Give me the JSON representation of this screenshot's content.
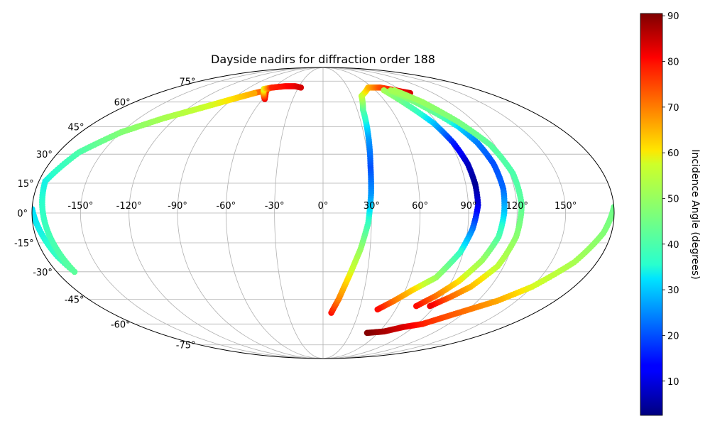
{
  "chart_data": {
    "type": "scatter",
    "projection": "mollweide",
    "title": "Dayside nadirs for diffraction order 188",
    "grid": true,
    "lon_ticks": [
      -150,
      -120,
      -90,
      -60,
      -30,
      0,
      30,
      60,
      90,
      120,
      150
    ],
    "lon_tick_labels": [
      "-150°",
      "-120°",
      "-90°",
      "-60°",
      "-30°",
      "0°",
      "30°",
      "60°",
      "90°",
      "120°",
      "150°"
    ],
    "lat_ticks": [
      75,
      60,
      45,
      30,
      15,
      0,
      -15,
      -30,
      -45,
      -60,
      -75
    ],
    "lat_tick_labels": [
      "75°",
      "60°",
      "45°",
      "30°",
      "15°",
      "0°",
      "-15°",
      "-30°",
      "-45°",
      "-60°",
      "-75°"
    ],
    "colorbar": {
      "label": "Incidence Angle (degrees)",
      "colormap": "jet",
      "range": [
        2.5,
        90.5
      ],
      "ticks": [
        10,
        20,
        30,
        40,
        50,
        60,
        70,
        80,
        90
      ],
      "tick_labels": [
        "10",
        "20",
        "30",
        "40",
        "50",
        "60",
        "70",
        "80",
        "90"
      ],
      "placement": "right"
    },
    "series": [
      {
        "points": [
          [
            -180,
            2,
            47
          ],
          [
            -176,
            -10,
            38
          ],
          [
            -172,
            -22,
            41
          ],
          [
            -168,
            -30,
            50
          ],
          [
            -176,
            16,
            43
          ],
          [
            -166,
            31,
            44
          ],
          [
            -150,
            42,
            48
          ],
          [
            -130,
            50,
            54
          ],
          [
            -110,
            56,
            60
          ],
          [
            -90,
            62,
            64
          ],
          [
            -75,
            66,
            70
          ],
          [
            -65,
            68,
            73
          ],
          [
            -60,
            64,
            78
          ],
          [
            -58,
            62,
            82
          ],
          [
            -70,
            69,
            58
          ],
          [
            -62,
            70,
            78
          ],
          [
            -48,
            71,
            80
          ],
          [
            -35,
            71,
            82
          ],
          [
            -27,
            70,
            84
          ]
        ]
      },
      {
        "points": [
          [
            -180,
            2,
            32
          ],
          [
            -176,
            -10,
            34
          ],
          [
            -172,
            -22,
            37
          ],
          [
            -168,
            -30,
            42
          ],
          [
            -176,
            16,
            34
          ],
          [
            -166,
            31,
            40
          ],
          [
            -150,
            42,
            47
          ],
          [
            -130,
            50,
            52
          ],
          [
            -110,
            56,
            56
          ],
          [
            -90,
            62,
            61
          ],
          [
            -75,
            66,
            66
          ]
        ]
      },
      {
        "points": [
          [
            7,
            -53,
            80
          ],
          [
            12,
            -45,
            70
          ],
          [
            18,
            -32,
            60
          ],
          [
            24,
            -18,
            50
          ],
          [
            28,
            -5,
            38
          ],
          [
            30,
            10,
            26
          ],
          [
            31,
            24,
            20
          ],
          [
            33,
            40,
            27
          ],
          [
            35,
            55,
            40
          ],
          [
            40,
            64,
            55
          ],
          [
            55,
            70,
            64
          ],
          [
            70,
            70,
            74
          ],
          [
            83,
            68,
            80
          ],
          [
            95,
            66,
            84
          ]
        ]
      },
      {
        "points": [
          [
            70,
            68,
            52
          ],
          [
            78,
            58,
            42
          ],
          [
            87,
            47,
            30
          ],
          [
            92,
            36,
            16
          ],
          [
            95,
            25,
            8
          ],
          [
            96,
            14,
            4
          ],
          [
            96,
            4,
            10
          ],
          [
            93,
            -8,
            23
          ],
          [
            88,
            -20,
            36
          ],
          [
            78,
            -33,
            50
          ],
          [
            65,
            -40,
            62
          ],
          [
            55,
            -46,
            70
          ],
          [
            45,
            -51,
            80
          ]
        ]
      },
      {
        "points": [
          [
            78,
            68,
            52
          ],
          [
            88,
            60,
            46
          ],
          [
            97,
            52,
            42
          ],
          [
            104,
            45,
            32
          ],
          [
            109,
            36,
            24
          ],
          [
            112,
            25,
            20
          ],
          [
            113,
            12,
            22
          ],
          [
            112,
            0,
            30
          ],
          [
            110,
            -12,
            40
          ],
          [
            104,
            -24,
            50
          ],
          [
            95,
            -35,
            60
          ],
          [
            85,
            -43,
            70
          ],
          [
            75,
            -49,
            80
          ]
        ]
      },
      {
        "points": [
          [
            82,
            68,
            52
          ],
          [
            95,
            60,
            50
          ],
          [
            107,
            48,
            46
          ],
          [
            117,
            35,
            42
          ],
          [
            122,
            20,
            40
          ],
          [
            123,
            4,
            42
          ],
          [
            121,
            -12,
            48
          ],
          [
            116,
            -27,
            55
          ],
          [
            106,
            -38,
            64
          ],
          [
            96,
            -44,
            72
          ],
          [
            86,
            -49,
            82
          ]
        ]
      },
      {
        "points": [
          [
            180,
            3,
            44
          ],
          [
            175,
            -10,
            47
          ],
          [
            165,
            -25,
            52
          ],
          [
            150,
            -38,
            58
          ],
          [
            135,
            -46,
            66
          ],
          [
            115,
            -53,
            72
          ],
          [
            95,
            -60,
            78
          ],
          [
            80,
            -62,
            83
          ],
          [
            65,
            -65,
            87
          ],
          [
            48,
            -66,
            90
          ]
        ]
      }
    ]
  }
}
